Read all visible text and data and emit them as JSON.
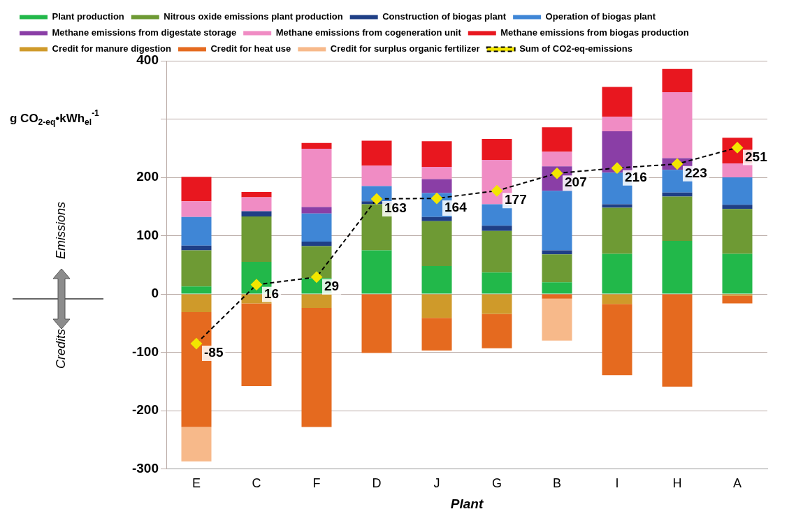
{
  "chart_data": {
    "type": "bar",
    "stacked": true,
    "xlabel": "Plant",
    "ylabel": "g CO$_{2-eq}$•kWh$_{el}$$^{-1}$",
    "categories": [
      "E",
      "C",
      "F",
      "D",
      "J",
      "G",
      "B",
      "I",
      "H",
      "A"
    ],
    "series": [
      {
        "name": "Plant production",
        "color": "#22b84a",
        "values": [
          13,
          55,
          27,
          75,
          48,
          37,
          20,
          69,
          91,
          69
        ]
      },
      {
        "name": "Nitrous oxide emissions plant production",
        "color": "#6e9a34",
        "values": [
          62,
          78,
          55,
          79,
          77,
          71,
          48,
          79,
          76,
          77
        ]
      },
      {
        "name": "Construction of biogas plant",
        "color": "#1f3f86",
        "values": [
          8,
          9,
          8,
          5,
          7,
          9,
          7,
          6,
          7,
          7
        ]
      },
      {
        "name": "Operation of biogas plant",
        "color": "#3f86d6",
        "values": [
          49,
          0,
          48,
          26,
          41,
          37,
          102,
          54,
          39,
          47
        ]
      },
      {
        "name": "Methane emissions from digestate storage",
        "color": "#8a3ea6",
        "values": [
          0,
          0,
          11,
          0,
          24,
          0,
          42,
          71,
          20,
          0
        ]
      },
      {
        "name": "Methane emissions from cogeneration unit",
        "color": "#f08cc4",
        "values": [
          27,
          24,
          100,
          35,
          21,
          76,
          25,
          25,
          113,
          24
        ]
      },
      {
        "name": "Methane emissions from biogas production",
        "color": "#e8171f",
        "values": [
          42,
          9,
          10,
          43,
          44,
          36,
          42,
          51,
          40,
          44
        ]
      },
      {
        "name": "Credit for manure digestion",
        "color": "#cf9a2a",
        "values": [
          -31,
          -16,
          -24,
          0,
          -41,
          -34,
          0,
          -17,
          0,
          -3
        ]
      },
      {
        "name": "Credit for heat use",
        "color": "#e56a1f",
        "values": [
          -197,
          -142,
          -204,
          -101,
          -56,
          -59,
          -8,
          -122,
          -159,
          -13
        ]
      },
      {
        "name": "Credit for surplus organic fertilizer",
        "color": "#f7b98a",
        "values": [
          -59,
          0,
          0,
          0,
          0,
          0,
          -72,
          0,
          0,
          0
        ]
      },
      {
        "name": "Sum of CO2-eq-emissions",
        "type": "line",
        "color": "#000000",
        "colors": [
          "#f2e600",
          "#f2e600",
          "#f2e600",
          "#f2e600",
          "#f2e600",
          "#f2e600",
          "#f2e600",
          "#f2e600",
          "#f2e600",
          "#f2e600"
        ],
        "marker": "diamond",
        "line_style": "dashed",
        "values": [
          -85,
          16,
          29,
          163,
          164,
          177,
          207,
          216,
          223,
          251
        ],
        "value_labels": [
          "-85",
          "16",
          "29",
          "163",
          "164",
          "177",
          "207",
          "216",
          "223",
          "251"
        ]
      }
    ],
    "ylim": [
      -300,
      400
    ],
    "yticks": [
      -300,
      -200,
      -100,
      0,
      100,
      200,
      {
        "value": 300,
        "label": null
      },
      400
    ],
    "grid": "y",
    "legend": "top",
    "annotations": [
      "Emissions",
      "Credits"
    ]
  }
}
